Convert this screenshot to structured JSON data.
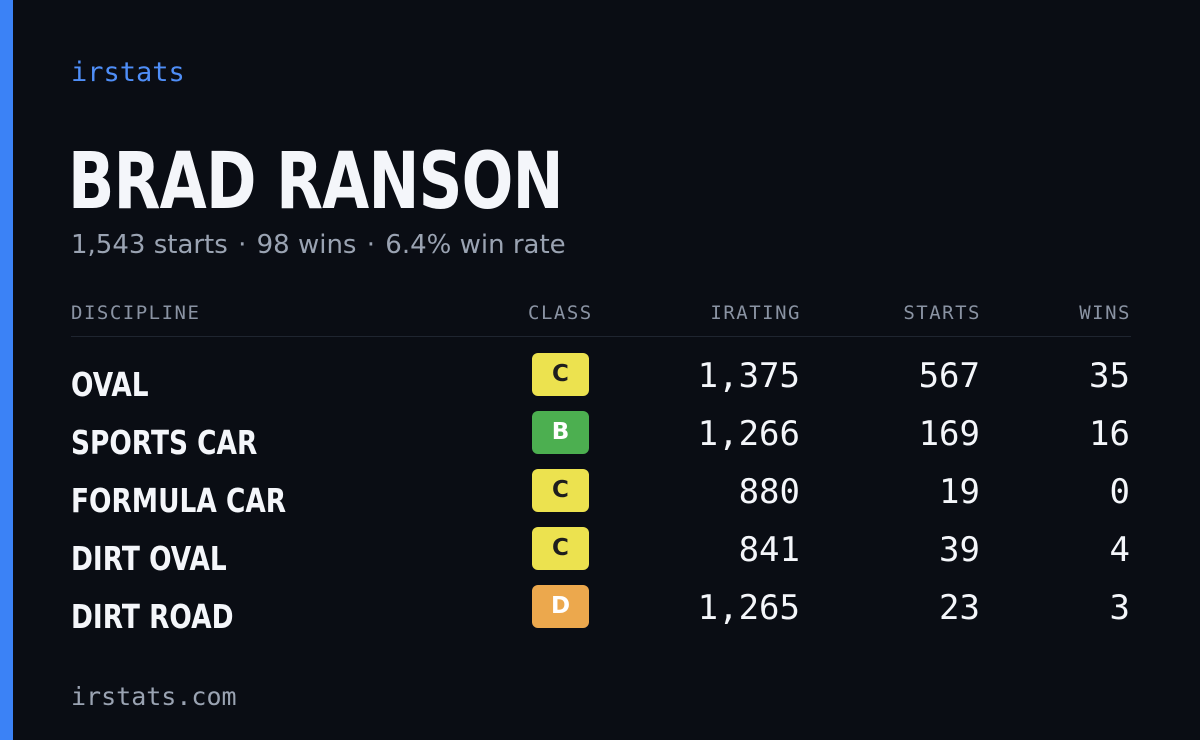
{
  "brand": "irstats",
  "driver": {
    "name": "BRAD RANSON",
    "starts_text": "1,543 starts",
    "wins_text": "98 wins",
    "win_rate_text": "6.4% win rate",
    "separator": "·"
  },
  "table": {
    "headers": {
      "discipline": "DISCIPLINE",
      "class": "CLASS",
      "irating": "IRATING",
      "starts": "STARTS",
      "wins": "WINS"
    },
    "rows": [
      {
        "discipline": "OVAL",
        "class": "C",
        "class_color": "#ece24f",
        "irating": "1,375",
        "starts": "567",
        "wins": "35"
      },
      {
        "discipline": "SPORTS CAR",
        "class": "B",
        "class_color": "#4caf50",
        "irating": "1,266",
        "starts": "169",
        "wins": "16"
      },
      {
        "discipline": "FORMULA CAR",
        "class": "C",
        "class_color": "#ece24f",
        "irating": "880",
        "starts": "19",
        "wins": "0"
      },
      {
        "discipline": "DIRT OVAL",
        "class": "C",
        "class_color": "#ece24f",
        "irating": "841",
        "starts": "39",
        "wins": "4"
      },
      {
        "discipline": "DIRT ROAD",
        "class": "D",
        "class_color": "#eca84d",
        "irating": "1,265",
        "starts": "23",
        "wins": "3"
      }
    ]
  },
  "footer": "irstats.com",
  "colors": {
    "background": "#0a0d14",
    "accent": "#3b82f6"
  }
}
